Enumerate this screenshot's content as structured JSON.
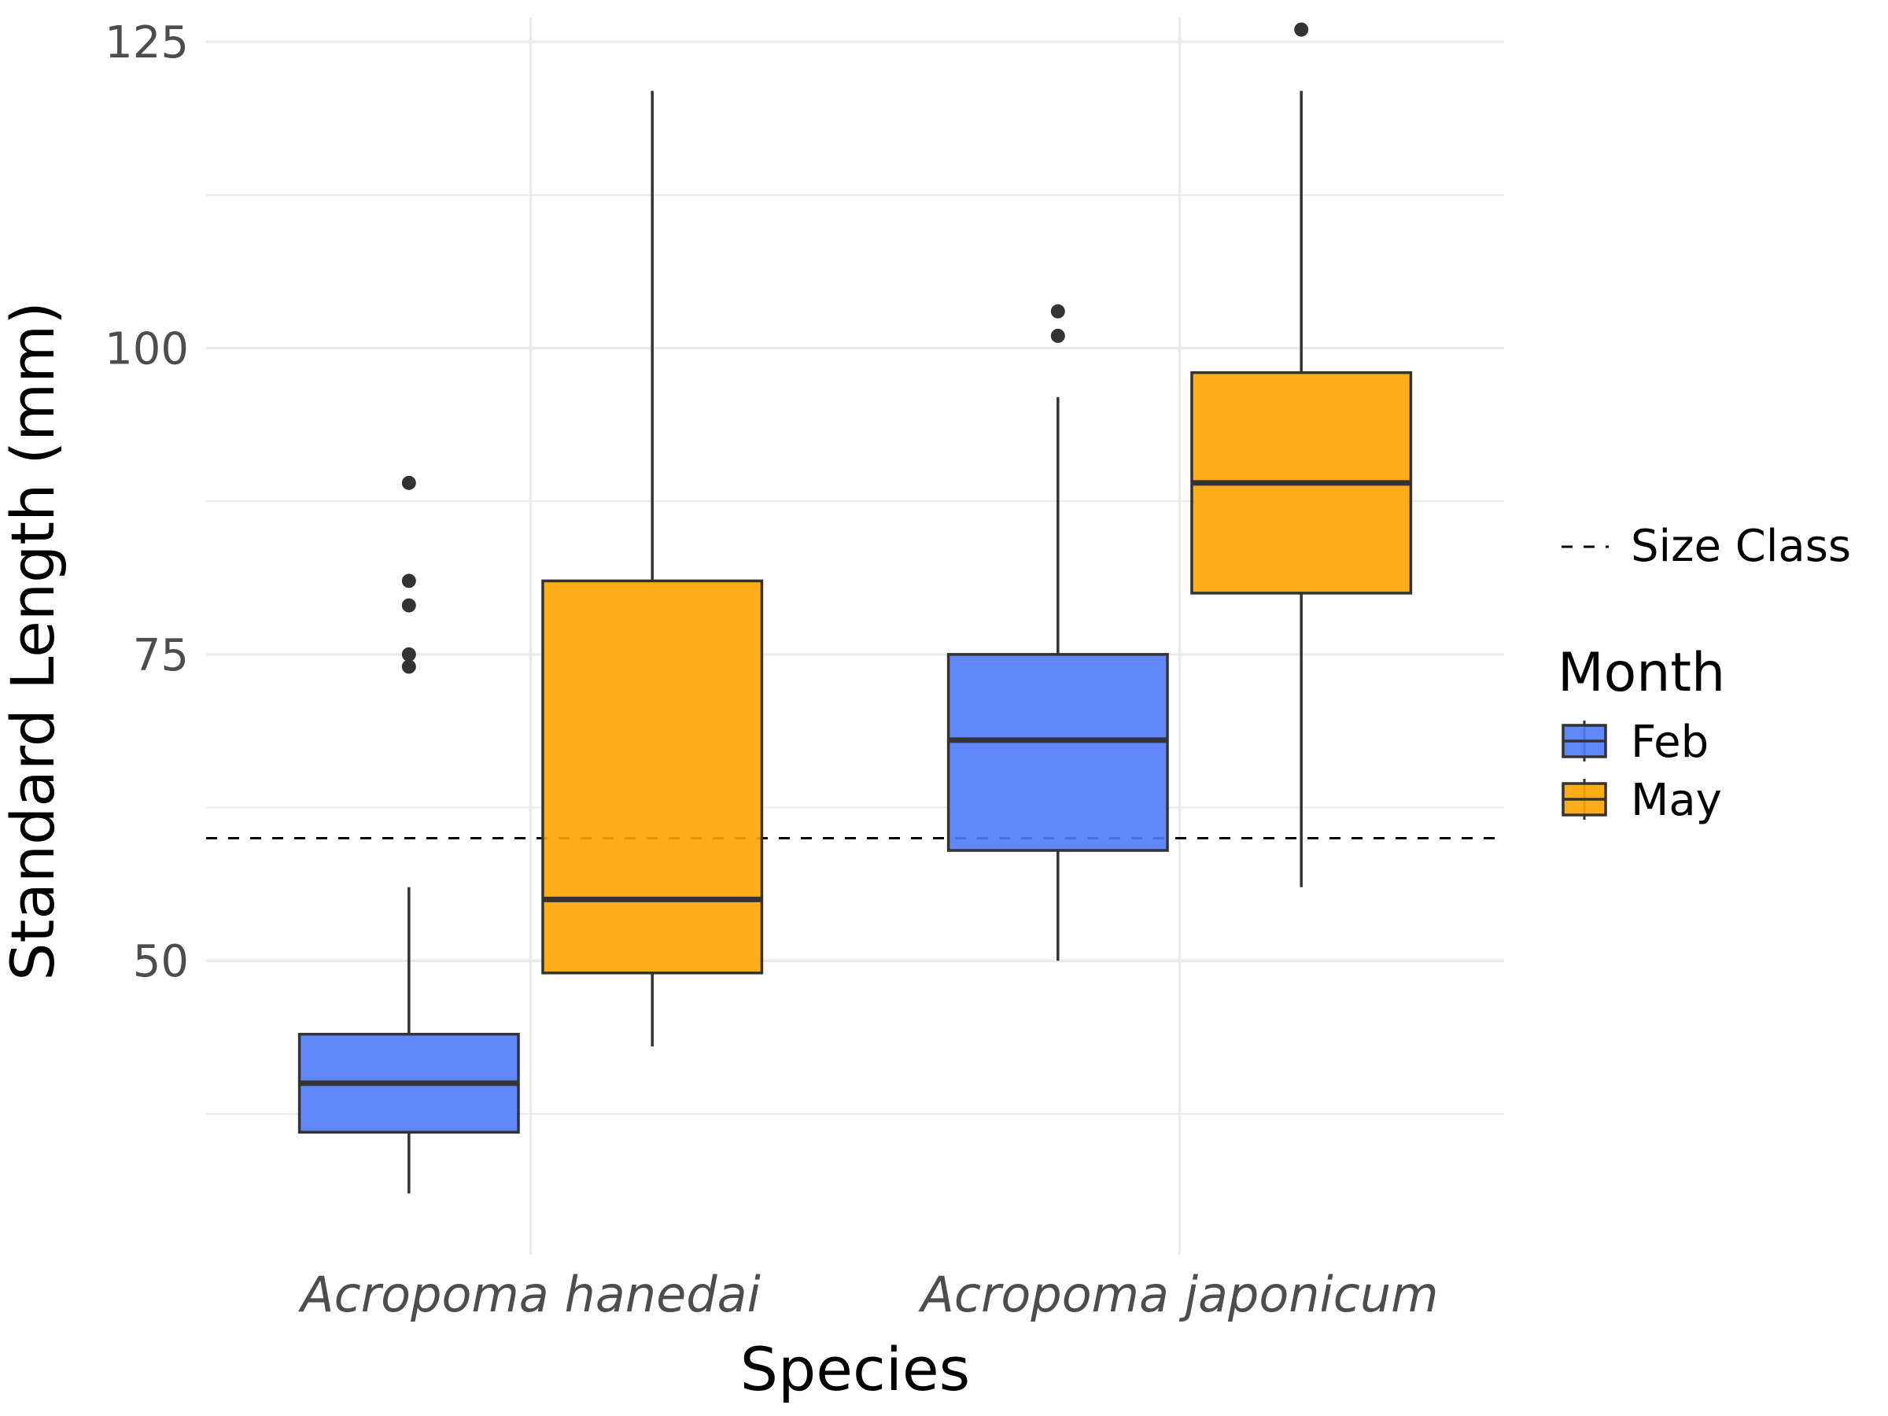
{
  "chart_data": {
    "type": "box",
    "xlabel": "Species",
    "ylabel": "Standard Length (mm)",
    "categories": [
      "Acropoma hanedai",
      "Acropoma japonicum"
    ],
    "yticks": [
      50,
      75,
      100,
      125
    ],
    "ylim": [
      26,
      127
    ],
    "grid": true,
    "legend_placement": "right",
    "reference_line": {
      "y": 60,
      "label": "Size Class",
      "style": "dashed",
      "color": "#000000"
    },
    "legend": {
      "title": "Month",
      "line_label": "Size Class"
    },
    "series": [
      {
        "name": "Feb",
        "color": "#4f7bfb",
        "boxes": [
          {
            "category": "Acropoma hanedai",
            "whisker_low": 31,
            "q1": 36,
            "median": 40,
            "q3": 44,
            "whisker_high": 56,
            "outliers": [
              74,
              75,
              79,
              81,
              89
            ]
          },
          {
            "category": "Acropoma japonicum",
            "whisker_low": 50,
            "q1": 59,
            "median": 68,
            "q3": 75,
            "whisker_high": 96,
            "outliers": [
              101,
              103
            ]
          }
        ]
      },
      {
        "name": "May",
        "color": "#ffa500",
        "boxes": [
          {
            "category": "Acropoma hanedai",
            "whisker_low": 43,
            "q1": 49,
            "median": 55,
            "q3": 81,
            "whisker_high": 121,
            "outliers": []
          },
          {
            "category": "Acropoma japonicum",
            "whisker_low": 56,
            "q1": 80,
            "median": 89,
            "q3": 98,
            "whisker_high": 121,
            "outliers": [
              126
            ]
          }
        ]
      }
    ]
  }
}
